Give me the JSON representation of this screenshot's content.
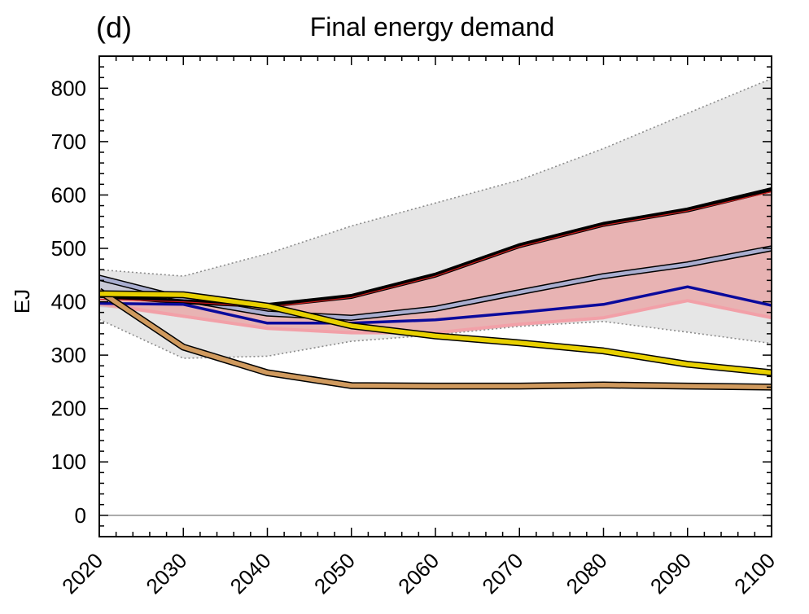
{
  "panel_label": "(d)",
  "chart_data": {
    "type": "line",
    "title": "Final energy demand",
    "xlabel": "",
    "ylabel": "EJ",
    "xlim": [
      2020,
      2100
    ],
    "ylim": [
      -40,
      860
    ],
    "x": [
      2020,
      2030,
      2040,
      2050,
      2060,
      2070,
      2080,
      2090,
      2100
    ],
    "xticks": [
      "2020",
      "2030",
      "2040",
      "2050",
      "2060",
      "2070",
      "2080",
      "2090",
      "2100"
    ],
    "yticks": [
      "0",
      "100",
      "200",
      "300",
      "400",
      "500",
      "600",
      "700",
      "800"
    ],
    "grid": false,
    "legend": "none",
    "bands": [
      {
        "color": "#e6e6e6",
        "edge": "#8c8c8c",
        "upper": [
          460,
          448,
          490,
          542,
          585,
          628,
          687,
          753,
          818
        ],
        "lower": [
          367,
          294,
          298,
          326,
          338,
          354,
          363,
          343,
          322
        ]
      },
      {
        "color": "#c9c9d6",
        "edge": "",
        "upper": [
          445,
          400,
          378,
          368,
          380,
          418,
          445,
          448,
          440
        ],
        "lower": [
          390,
          380,
          350,
          342,
          358,
          375,
          390,
          400,
          368
        ]
      },
      {
        "color": "#e8b3b3",
        "edge": "",
        "upper": [
          405,
          402,
          393,
          410,
          450,
          505,
          545,
          572,
          610
        ],
        "lower": [
          392,
          370,
          348,
          342,
          340,
          358,
          368,
          400,
          368
        ]
      }
    ],
    "series": [
      {
        "values": [
          397,
          373,
          350,
          342,
          342,
          358,
          370,
          402,
          370
        ],
        "color": "#f2a0a8",
        "width": 4,
        "outline": false
      },
      {
        "values": [
          445,
          405,
          378,
          370,
          387,
          418,
          448,
          470,
          500
        ],
        "color": "#a9aed0",
        "width": 4.5,
        "outline": true
      },
      {
        "values": [
          412,
          400,
          393,
          410,
          450,
          505,
          545,
          572,
          610
        ],
        "color": "#000000",
        "width": 6,
        "outline": false
      },
      {
        "values": [
          405,
          400,
          390,
          408,
          448,
          503,
          543,
          570,
          606
        ],
        "color": "#cc1a1a",
        "width": 1.2,
        "outline": false
      },
      {
        "values": [
          397,
          395,
          360,
          360,
          366,
          380,
          395,
          428,
          393
        ],
        "color": "#0a0a9c",
        "width": 3.5,
        "outline": false
      },
      {
        "values": [
          420,
          315,
          267,
          243,
          242,
          242,
          244,
          242,
          240
        ],
        "color": "#d09a5e",
        "width": 5.5,
        "outline": true
      },
      {
        "values": [
          415,
          413,
          392,
          355,
          336,
          323,
          308,
          283,
          267
        ],
        "color": "#e8d000",
        "width": 5.5,
        "outline": true
      }
    ],
    "zero_line_color": "#8c8c8c"
  }
}
